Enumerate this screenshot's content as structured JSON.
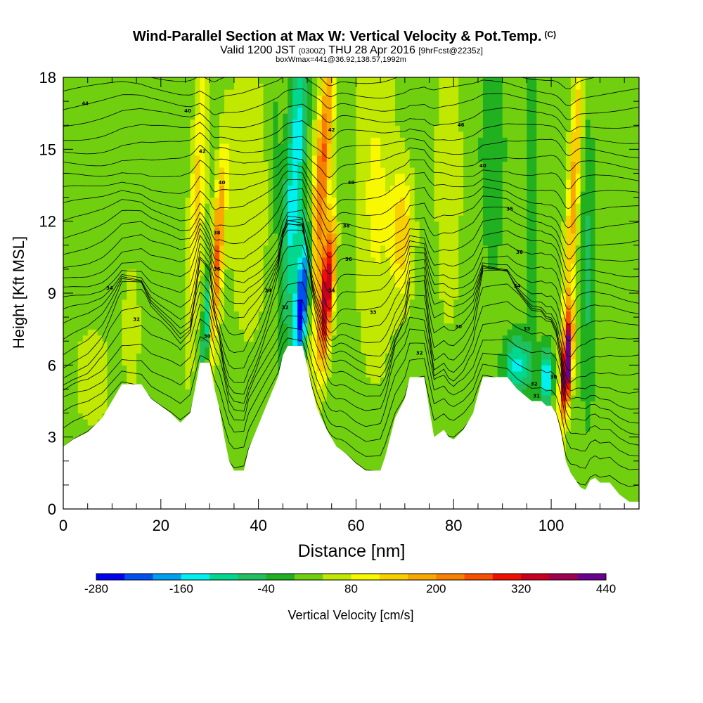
{
  "header": {
    "title": "Wind-Parallel Section at Max W: Vertical Velocity & Pot.Temp.",
    "title_mark": "(C)",
    "line2_a": "Valid 1200 JST",
    "line2_b": "(0300Z)",
    "line2_c": "THU 28 Apr 2016",
    "line2_d": "[9hrFcst@2235z]",
    "line3": "boxWmax=441@36.92,138.57,1992m"
  },
  "colorbar": {
    "label": "Vertical Velocity [cm/s]",
    "levels": [
      -280,
      -240,
      -200,
      -160,
      -120,
      -80,
      -40,
      0,
      40,
      80,
      120,
      160,
      200,
      240,
      280,
      320,
      360,
      400,
      440
    ],
    "colors": [
      "#0000f0",
      "#0050f0",
      "#00a0f0",
      "#00f0f0",
      "#00d890",
      "#20c060",
      "#20b020",
      "#70d010",
      "#c0e800",
      "#f8f800",
      "#f8d000",
      "#f8a800",
      "#f88000",
      "#f85000",
      "#f01000",
      "#c80020",
      "#a00050",
      "#6a0090"
    ],
    "tick_labels": [
      "-280",
      "-160",
      "-40",
      "80",
      "200",
      "320",
      "440"
    ]
  },
  "chart_data": {
    "type": "heatmap",
    "xlabel": "Distance [nm]",
    "ylabel": "Height [Kft MSL]",
    "xlim": [
      0,
      118
    ],
    "ylim": [
      0,
      18
    ],
    "x_ticks": [
      0,
      20,
      40,
      60,
      80,
      100
    ],
    "y_ticks": [
      0,
      3,
      6,
      9,
      12,
      15,
      18
    ],
    "terrain": [
      [
        0,
        2.6
      ],
      [
        2,
        2.9
      ],
      [
        5,
        3.2
      ],
      [
        8,
        3.8
      ],
      [
        10,
        4.5
      ],
      [
        12,
        5.2
      ],
      [
        16,
        5.2
      ],
      [
        18,
        4.6
      ],
      [
        20,
        4.3
      ],
      [
        22,
        4.0
      ],
      [
        24,
        3.6
      ],
      [
        26,
        4.0
      ],
      [
        27,
        5.0
      ],
      [
        28,
        6.1
      ],
      [
        30,
        6.1
      ],
      [
        31,
        5.0
      ],
      [
        32,
        4.2
      ],
      [
        33,
        3.0
      ],
      [
        34,
        2.0
      ],
      [
        35,
        1.6
      ],
      [
        37,
        1.6
      ],
      [
        38,
        2.5
      ],
      [
        40,
        3.5
      ],
      [
        42,
        4.5
      ],
      [
        44,
        5.5
      ],
      [
        45,
        6.4
      ],
      [
        46,
        6.8
      ],
      [
        49,
        6.8
      ],
      [
        50,
        6.0
      ],
      [
        51,
        5.0
      ],
      [
        52,
        4.2
      ],
      [
        54,
        3.3
      ],
      [
        56,
        2.6
      ],
      [
        58,
        2.3
      ],
      [
        60,
        1.9
      ],
      [
        62,
        1.6
      ],
      [
        65,
        1.6
      ],
      [
        66,
        2.2
      ],
      [
        67,
        3.0
      ],
      [
        68,
        3.8
      ],
      [
        70,
        4.6
      ],
      [
        71,
        5.5
      ],
      [
        74,
        5.5
      ],
      [
        75,
        4.2
      ],
      [
        76,
        3.0
      ],
      [
        78,
        3.3
      ],
      [
        79,
        3.0
      ],
      [
        80,
        2.9
      ],
      [
        82,
        3.3
      ],
      [
        84,
        4.0
      ],
      [
        85,
        4.8
      ],
      [
        86,
        5.5
      ],
      [
        91,
        5.5
      ],
      [
        93,
        5.0
      ],
      [
        96,
        4.5
      ],
      [
        98,
        4.5
      ],
      [
        99,
        4.3
      ],
      [
        100,
        4.3
      ],
      [
        101,
        4.0
      ],
      [
        102,
        3.2
      ],
      [
        103,
        2.0
      ],
      [
        104,
        1.5
      ],
      [
        106,
        0.9
      ],
      [
        107,
        0.8
      ],
      [
        108,
        1.2
      ],
      [
        109,
        1.3
      ],
      [
        110,
        1.1
      ],
      [
        112,
        1.1
      ],
      [
        114,
        0.6
      ],
      [
        116,
        0.3
      ],
      [
        118,
        0.3
      ]
    ],
    "features": [
      {
        "x": 27.5,
        "y": 13.0,
        "dx": 1.5,
        "dy": 6.0,
        "w": 120,
        "tilt": 0.25
      },
      {
        "x": 29.5,
        "y": 8.0,
        "dx": 0.8,
        "dy": 2.5,
        "w": -180,
        "tilt": 0.3
      },
      {
        "x": 31.5,
        "y": 10.5,
        "dx": 1.2,
        "dy": 4.0,
        "w": 230,
        "tilt": 0.3
      },
      {
        "x": 38.0,
        "y": 13.0,
        "dx": 4.0,
        "dy": 6.0,
        "w": 55,
        "tilt": 0.0
      },
      {
        "x": 43.5,
        "y": 14.5,
        "dx": 1.4,
        "dy": 6.0,
        "w": -30,
        "tilt": 0.0
      },
      {
        "x": 47.5,
        "y": 14.0,
        "dx": 1.8,
        "dy": 6.0,
        "w": -180,
        "tilt": 0.25
      },
      {
        "x": 49.0,
        "y": 8.5,
        "dx": 1.5,
        "dy": 3.0,
        "w": -300,
        "tilt": 0.35
      },
      {
        "x": 53.0,
        "y": 14.0,
        "dx": 1.6,
        "dy": 6.0,
        "w": 230,
        "tilt": 0.35
      },
      {
        "x": 54.0,
        "y": 9.0,
        "dx": 1.4,
        "dy": 3.0,
        "w": 360,
        "tilt": 0.35
      },
      {
        "x": 57.0,
        "y": 12.0,
        "dx": 1.5,
        "dy": 5.0,
        "w": -30,
        "tilt": 0.0
      },
      {
        "x": 64.0,
        "y": 13.0,
        "dx": 4.0,
        "dy": 7.0,
        "w": 70,
        "tilt": 0.0
      },
      {
        "x": 69.5,
        "y": 11.5,
        "dx": 2.2,
        "dy": 2.5,
        "w": 130,
        "tilt": 0.0
      },
      {
        "x": 79.0,
        "y": 14.0,
        "dx": 2.5,
        "dy": 6.0,
        "w": 60,
        "tilt": 0.0
      },
      {
        "x": 88.0,
        "y": 15.0,
        "dx": 2.5,
        "dy": 5.0,
        "w": -55,
        "tilt": 0.0
      },
      {
        "x": 93.0,
        "y": 6.0,
        "dx": 2.5,
        "dy": 1.2,
        "w": -160,
        "tilt": 0.0
      },
      {
        "x": 96.0,
        "y": 12.5,
        "dx": 1.2,
        "dy": 7.0,
        "w": -60,
        "tilt": 0.0
      },
      {
        "x": 99.0,
        "y": 5.5,
        "dx": 1.2,
        "dy": 1.2,
        "w": -190,
        "tilt": 0.0
      },
      {
        "x": 104.5,
        "y": 13.0,
        "dx": 1.2,
        "dy": 7.0,
        "w": 160,
        "tilt": 0.25
      },
      {
        "x": 103.2,
        "y": 6.0,
        "dx": 1.0,
        "dy": 2.0,
        "w": 440,
        "tilt": 0.3
      },
      {
        "x": 107.5,
        "y": 10.0,
        "dx": 1.5,
        "dy": 6.0,
        "w": -70,
        "tilt": 0.0
      },
      {
        "x": 6.0,
        "y": 5.5,
        "dx": 4.0,
        "dy": 2.5,
        "w": 40,
        "tilt": 0.0
      },
      {
        "x": 14.0,
        "y": 7.5,
        "dx": 2.0,
        "dy": 3.0,
        "w": 40,
        "tilt": 0.0
      }
    ],
    "contour_labels": [
      {
        "x": 4.5,
        "y": 16.9,
        "t": "44"
      },
      {
        "x": 25.5,
        "y": 16.6,
        "t": "40"
      },
      {
        "x": 28.5,
        "y": 14.9,
        "t": "42"
      },
      {
        "x": 32.5,
        "y": 13.6,
        "t": "40"
      },
      {
        "x": 31.5,
        "y": 11.5,
        "t": "38"
      },
      {
        "x": 31.5,
        "y": 10.0,
        "t": "36"
      },
      {
        "x": 9.5,
        "y": 9.2,
        "t": "34"
      },
      {
        "x": 15.0,
        "y": 7.9,
        "t": "32"
      },
      {
        "x": 29.5,
        "y": 7.2,
        "t": "30"
      },
      {
        "x": 42.0,
        "y": 9.1,
        "t": "34"
      },
      {
        "x": 45.5,
        "y": 8.4,
        "t": "32"
      },
      {
        "x": 55.0,
        "y": 15.8,
        "t": "42"
      },
      {
        "x": 59.0,
        "y": 13.6,
        "t": "40"
      },
      {
        "x": 58.0,
        "y": 11.8,
        "t": "38"
      },
      {
        "x": 58.5,
        "y": 10.4,
        "t": "36"
      },
      {
        "x": 55.0,
        "y": 9.1,
        "t": "34"
      },
      {
        "x": 63.5,
        "y": 8.2,
        "t": "33"
      },
      {
        "x": 81.0,
        "y": 7.6,
        "t": "30"
      },
      {
        "x": 73.0,
        "y": 6.5,
        "t": "32"
      },
      {
        "x": 81.5,
        "y": 16.0,
        "t": "46"
      },
      {
        "x": 86.0,
        "y": 14.3,
        "t": "40"
      },
      {
        "x": 91.5,
        "y": 12.5,
        "t": "35"
      },
      {
        "x": 93.5,
        "y": 10.7,
        "t": "36"
      },
      {
        "x": 93.0,
        "y": 9.3,
        "t": "34"
      },
      {
        "x": 95.0,
        "y": 7.5,
        "t": "33"
      },
      {
        "x": 96.5,
        "y": 5.2,
        "t": "32"
      },
      {
        "x": 97.0,
        "y": 4.7,
        "t": "31"
      },
      {
        "x": 100.5,
        "y": 5.5,
        "t": "30"
      }
    ]
  }
}
